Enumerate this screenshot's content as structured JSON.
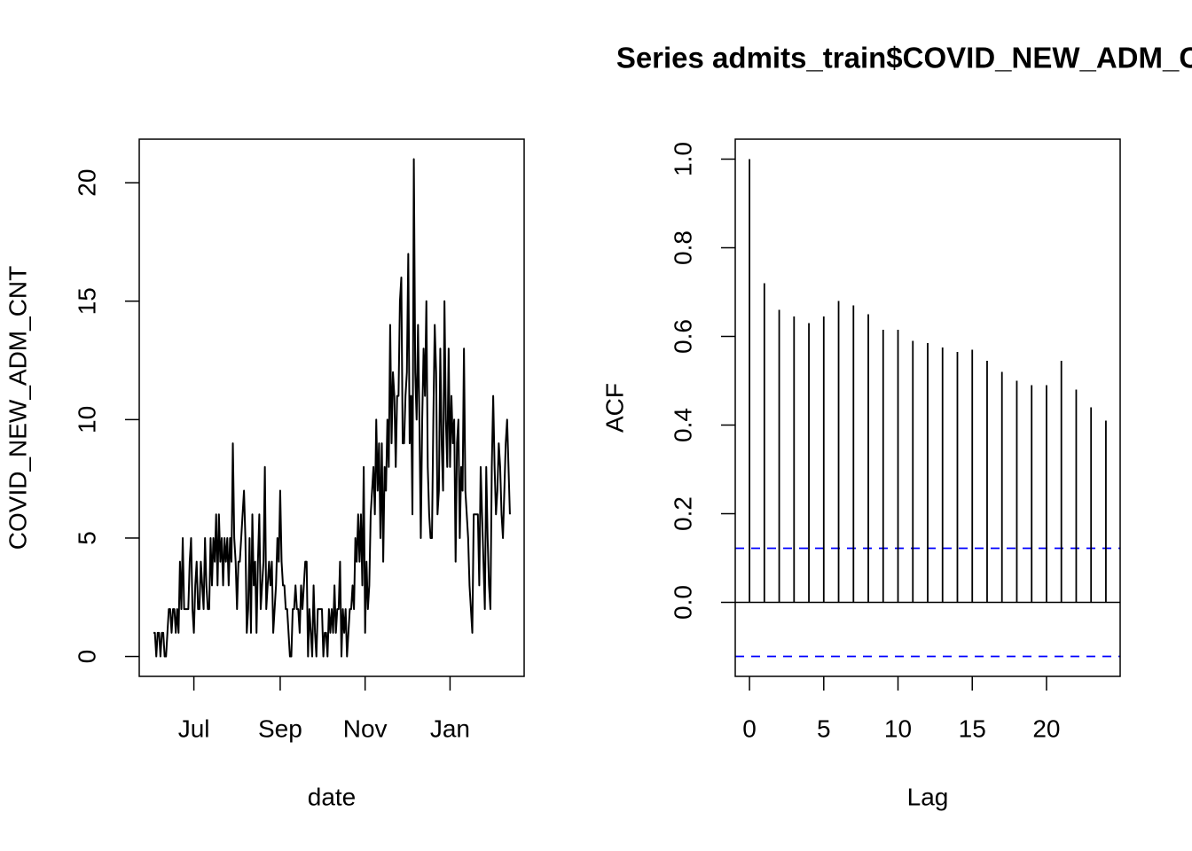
{
  "chart_data": [
    {
      "type": "line",
      "x_label": "date",
      "y_label": "COVID_NEW_ADM_CNT",
      "color": "#000000",
      "x": [
        0,
        1,
        2,
        3,
        4,
        5,
        6,
        7,
        8,
        9,
        10,
        11,
        12,
        13,
        14,
        15,
        16,
        17,
        18,
        19,
        20,
        21,
        22,
        23,
        24,
        25,
        26,
        27,
        28,
        29,
        30,
        31,
        32,
        33,
        34,
        35,
        36,
        37,
        38,
        39,
        40,
        41,
        42,
        43,
        44,
        45,
        46,
        47,
        48,
        49,
        50,
        51,
        52,
        53,
        54,
        55,
        56,
        57,
        58,
        59,
        60,
        61,
        62,
        63,
        64,
        65,
        66,
        67,
        68,
        69,
        70,
        71,
        72,
        73,
        74,
        75,
        76,
        77,
        78,
        79,
        80,
        81,
        82,
        83,
        84,
        85,
        86,
        87,
        88,
        89,
        90,
        91,
        92,
        93,
        94,
        95,
        96,
        97,
        98,
        99,
        100,
        101,
        102,
        103,
        104,
        105,
        106,
        107,
        108,
        109,
        110,
        111,
        112,
        113,
        114,
        115,
        116,
        117,
        118,
        119,
        120,
        121,
        122,
        123,
        124,
        125,
        126,
        127,
        128,
        129,
        130,
        131,
        132,
        133,
        134,
        135,
        136,
        137,
        138,
        139,
        140,
        141,
        142,
        143,
        144,
        145,
        146,
        147,
        148,
        149,
        150,
        151,
        152,
        153,
        154,
        155,
        156,
        157,
        158,
        159,
        160,
        161,
        162,
        163,
        164,
        165,
        166,
        167,
        168,
        169,
        170,
        171,
        172,
        173,
        174,
        175,
        176,
        177,
        178,
        179,
        180,
        181,
        182,
        183,
        184,
        185,
        186,
        187,
        188,
        189,
        190,
        191,
        192,
        193,
        194,
        195,
        196,
        197,
        198,
        199,
        200,
        201,
        202,
        203,
        204,
        205,
        206,
        207,
        208,
        209,
        210,
        211,
        212,
        213,
        214,
        215,
        216,
        217,
        218,
        219,
        220,
        221,
        222,
        223,
        224,
        225,
        226,
        227,
        228,
        229,
        230,
        231,
        232,
        233,
        234,
        235,
        236,
        237,
        238,
        239,
        240,
        241,
        242,
        243,
        244,
        245,
        246,
        247,
        248,
        249,
        250,
        251,
        252,
        253,
        254,
        255,
        256
      ],
      "values": [
        1,
        1,
        0,
        1,
        1,
        0,
        1,
        1,
        0,
        0,
        1,
        2,
        2,
        1,
        2,
        2,
        1,
        2,
        1,
        4,
        2,
        5,
        2,
        2,
        2,
        2,
        4,
        5,
        2,
        1,
        3,
        4,
        2,
        2,
        4,
        3,
        2,
        5,
        3,
        2,
        2,
        5,
        3,
        5,
        4,
        6,
        3,
        6,
        4,
        5,
        3,
        5,
        4,
        5,
        3,
        5,
        4,
        9,
        5,
        4,
        2,
        4,
        4,
        5,
        6,
        7,
        5,
        1,
        2,
        5,
        1,
        6,
        3,
        4,
        1,
        4,
        6,
        2,
        3,
        4,
        8,
        2,
        3,
        4,
        3,
        4,
        1,
        2,
        3,
        5,
        4,
        7,
        4,
        3,
        3,
        2,
        2,
        1,
        0,
        0,
        2,
        2,
        3,
        2,
        2,
        1,
        3,
        2,
        3,
        4,
        4,
        0,
        2,
        1,
        0,
        3,
        1,
        0,
        2,
        2,
        2,
        2,
        0,
        1,
        1,
        0,
        2,
        1,
        2,
        1,
        3,
        1,
        2,
        2,
        4,
        0,
        2,
        1,
        2,
        0,
        1,
        2,
        2,
        3,
        2,
        5,
        4,
        6,
        4,
        6,
        3,
        8,
        1,
        4,
        2,
        3,
        6,
        7,
        8,
        6,
        10,
        7,
        9,
        5,
        9,
        4,
        8,
        7,
        10,
        8,
        14,
        9,
        12,
        11,
        8,
        11,
        11,
        15,
        16,
        9,
        9,
        11,
        12,
        17,
        9,
        11,
        6,
        21,
        12,
        10,
        14,
        10,
        5,
        10,
        13,
        11,
        15,
        8,
        6,
        5,
        5,
        10,
        14,
        12,
        6,
        7,
        13,
        9,
        7,
        15,
        10,
        8,
        13,
        8,
        11,
        9,
        10,
        4,
        9,
        10,
        5,
        8,
        7,
        13,
        7,
        6,
        5,
        3,
        2,
        1,
        6,
        6,
        6,
        6,
        3,
        8,
        6,
        4,
        2,
        8,
        5,
        3,
        2,
        8,
        11,
        8,
        6,
        7,
        9,
        8,
        6,
        5,
        7,
        9,
        10,
        8,
        6
      ],
      "xlim": [
        -10.24,
        266.24
      ],
      "xticks": [
        {
          "value": 29,
          "label": "Jul"
        },
        {
          "value": 91,
          "label": "Sep"
        },
        {
          "value": 152,
          "label": "Nov"
        },
        {
          "value": 213,
          "label": "Jan"
        }
      ],
      "ylim": [
        -0.84,
        21.84
      ],
      "yticks": [
        0,
        5,
        10,
        15,
        20
      ]
    },
    {
      "type": "acf",
      "title": "Series  admits_train$COVID_NEW_ADM_CNT",
      "x_label": "Lag",
      "y_label": "ACF",
      "color": "#000000",
      "x": [
        0,
        1,
        2,
        3,
        4,
        5,
        6,
        7,
        8,
        9,
        10,
        11,
        12,
        13,
        14,
        15,
        16,
        17,
        18,
        19,
        20,
        21,
        22,
        23,
        24
      ],
      "values": [
        1.0,
        0.72,
        0.66,
        0.645,
        0.63,
        0.645,
        0.68,
        0.67,
        0.65,
        0.615,
        0.615,
        0.59,
        0.585,
        0.575,
        0.565,
        0.57,
        0.545,
        0.52,
        0.5,
        0.49,
        0.49,
        0.545,
        0.48,
        0.44,
        0.41
      ],
      "ci": [
        0.122,
        -0.122
      ],
      "ci_color": "#0000ff",
      "xlim": [
        -0.96,
        24.96
      ],
      "xticks": [
        0,
        5,
        10,
        15,
        20
      ],
      "ylim": [
        -0.167,
        1.045
      ],
      "yticks": [
        {
          "value": 0,
          "label": "0.0"
        },
        0.2,
        0.4,
        0.6,
        0.8,
        {
          "value": 1,
          "label": "1.0"
        }
      ]
    }
  ]
}
